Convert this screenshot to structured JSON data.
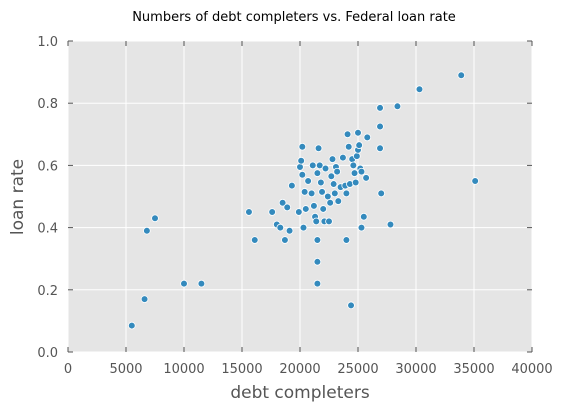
{
  "chart_data": {
    "type": "scatter",
    "title": "Numbers of debt completers vs. Federal loan rate",
    "xlabel": "debt completers",
    "ylabel": "loan rate",
    "xlim": [
      0,
      40000
    ],
    "ylim": [
      0.0,
      1.0
    ],
    "xticks": [
      0,
      5000,
      10000,
      15000,
      20000,
      25000,
      30000,
      35000,
      40000
    ],
    "xtick_labels": [
      "0",
      "5000",
      "10000",
      "15000",
      "20000",
      "25000",
      "30000",
      "35000",
      "40000"
    ],
    "yticks": [
      0.0,
      0.2,
      0.4,
      0.6,
      0.8,
      1.0
    ],
    "ytick_labels": [
      "0.0",
      "0.2",
      "0.4",
      "0.6",
      "0.8",
      "1.0"
    ],
    "grid": true,
    "colors": {
      "background": "#e5e5e5",
      "marker": "#348abd",
      "marker_edge": "#ffffff",
      "grid": "#ffffff"
    },
    "points": [
      {
        "x": 5500,
        "y": 0.085
      },
      {
        "x": 6600,
        "y": 0.17
      },
      {
        "x": 6800,
        "y": 0.39
      },
      {
        "x": 7500,
        "y": 0.43
      },
      {
        "x": 10000,
        "y": 0.22
      },
      {
        "x": 11500,
        "y": 0.22
      },
      {
        "x": 15600,
        "y": 0.45
      },
      {
        "x": 16100,
        "y": 0.36
      },
      {
        "x": 17600,
        "y": 0.45
      },
      {
        "x": 18000,
        "y": 0.41
      },
      {
        "x": 18300,
        "y": 0.4
      },
      {
        "x": 18500,
        "y": 0.48
      },
      {
        "x": 18700,
        "y": 0.36
      },
      {
        "x": 18900,
        "y": 0.465
      },
      {
        "x": 19100,
        "y": 0.39
      },
      {
        "x": 19300,
        "y": 0.535
      },
      {
        "x": 19900,
        "y": 0.45
      },
      {
        "x": 20000,
        "y": 0.595
      },
      {
        "x": 20100,
        "y": 0.615
      },
      {
        "x": 20200,
        "y": 0.66
      },
      {
        "x": 20200,
        "y": 0.57
      },
      {
        "x": 20300,
        "y": 0.4
      },
      {
        "x": 20400,
        "y": 0.515
      },
      {
        "x": 20500,
        "y": 0.46
      },
      {
        "x": 20700,
        "y": 0.55
      },
      {
        "x": 21000,
        "y": 0.51
      },
      {
        "x": 21100,
        "y": 0.6
      },
      {
        "x": 21200,
        "y": 0.47
      },
      {
        "x": 21300,
        "y": 0.435
      },
      {
        "x": 21400,
        "y": 0.42
      },
      {
        "x": 21500,
        "y": 0.36
      },
      {
        "x": 21500,
        "y": 0.29
      },
      {
        "x": 21500,
        "y": 0.22
      },
      {
        "x": 21500,
        "y": 0.575
      },
      {
        "x": 21600,
        "y": 0.655
      },
      {
        "x": 21700,
        "y": 0.6
      },
      {
        "x": 21800,
        "y": 0.545
      },
      {
        "x": 21900,
        "y": 0.515
      },
      {
        "x": 22000,
        "y": 0.46
      },
      {
        "x": 22100,
        "y": 0.42
      },
      {
        "x": 22200,
        "y": 0.59
      },
      {
        "x": 22400,
        "y": 0.5
      },
      {
        "x": 22500,
        "y": 0.42
      },
      {
        "x": 22600,
        "y": 0.48
      },
      {
        "x": 22700,
        "y": 0.565
      },
      {
        "x": 22800,
        "y": 0.62
      },
      {
        "x": 22900,
        "y": 0.54
      },
      {
        "x": 23000,
        "y": 0.51
      },
      {
        "x": 23100,
        "y": 0.595
      },
      {
        "x": 23200,
        "y": 0.58
      },
      {
        "x": 23300,
        "y": 0.485
      },
      {
        "x": 23500,
        "y": 0.53
      },
      {
        "x": 23700,
        "y": 0.625
      },
      {
        "x": 23900,
        "y": 0.535
      },
      {
        "x": 24000,
        "y": 0.51
      },
      {
        "x": 24000,
        "y": 0.36
      },
      {
        "x": 24100,
        "y": 0.7
      },
      {
        "x": 24200,
        "y": 0.66
      },
      {
        "x": 24300,
        "y": 0.54
      },
      {
        "x": 24400,
        "y": 0.15
      },
      {
        "x": 24500,
        "y": 0.62
      },
      {
        "x": 24600,
        "y": 0.6
      },
      {
        "x": 24700,
        "y": 0.575
      },
      {
        "x": 24800,
        "y": 0.545
      },
      {
        "x": 24900,
        "y": 0.63
      },
      {
        "x": 25000,
        "y": 0.705
      },
      {
        "x": 25000,
        "y": 0.65
      },
      {
        "x": 25100,
        "y": 0.665
      },
      {
        "x": 25200,
        "y": 0.59
      },
      {
        "x": 25300,
        "y": 0.58
      },
      {
        "x": 25300,
        "y": 0.4
      },
      {
        "x": 25500,
        "y": 0.435
      },
      {
        "x": 25700,
        "y": 0.56
      },
      {
        "x": 25800,
        "y": 0.69
      },
      {
        "x": 26900,
        "y": 0.785
      },
      {
        "x": 26900,
        "y": 0.725
      },
      {
        "x": 26900,
        "y": 0.655
      },
      {
        "x": 27000,
        "y": 0.51
      },
      {
        "x": 27800,
        "y": 0.41
      },
      {
        "x": 28400,
        "y": 0.79
      },
      {
        "x": 30300,
        "y": 0.845
      },
      {
        "x": 33900,
        "y": 0.89
      },
      {
        "x": 35100,
        "y": 0.55
      }
    ]
  }
}
